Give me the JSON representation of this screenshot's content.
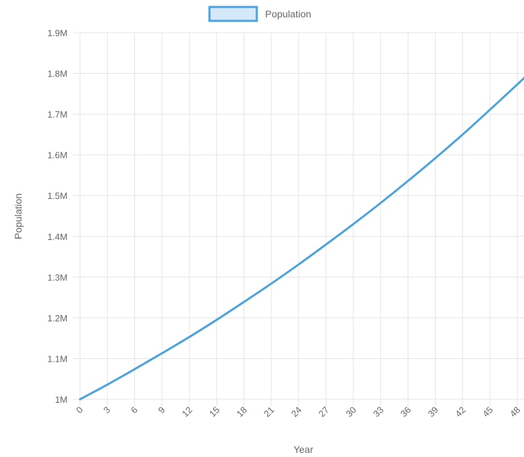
{
  "chart_data": {
    "type": "line",
    "title": "",
    "xlabel": "Year",
    "ylabel": "Population",
    "legend_position": "top-center",
    "grid": true,
    "ylim": [
      1000000,
      1900000
    ],
    "y_ticks": [
      "1M",
      "1.1M",
      "1.2M",
      "1.3M",
      "1.4M",
      "1.5M",
      "1.6M",
      "1.7M",
      "1.8M",
      "1.9M"
    ],
    "x_ticks": [
      "0",
      "3",
      "6",
      "9",
      "12",
      "15",
      "18",
      "21",
      "24",
      "27",
      "30",
      "33",
      "36",
      "39",
      "42",
      "45",
      "48"
    ],
    "series": [
      {
        "name": "Population",
        "color": "#4aa3df",
        "fill": "#d6e9f8",
        "x": [
          0,
          3,
          6,
          9,
          12,
          15,
          18,
          21,
          24,
          27,
          30,
          33,
          36,
          39,
          42,
          45,
          48,
          49
        ],
        "values": [
          1000000,
          1036000,
          1074000,
          1113000,
          1153000,
          1195000,
          1239000,
          1284000,
          1331000,
          1380000,
          1430000,
          1482000,
          1536000,
          1592000,
          1650000,
          1711000,
          1773000,
          1794000
        ]
      }
    ]
  }
}
